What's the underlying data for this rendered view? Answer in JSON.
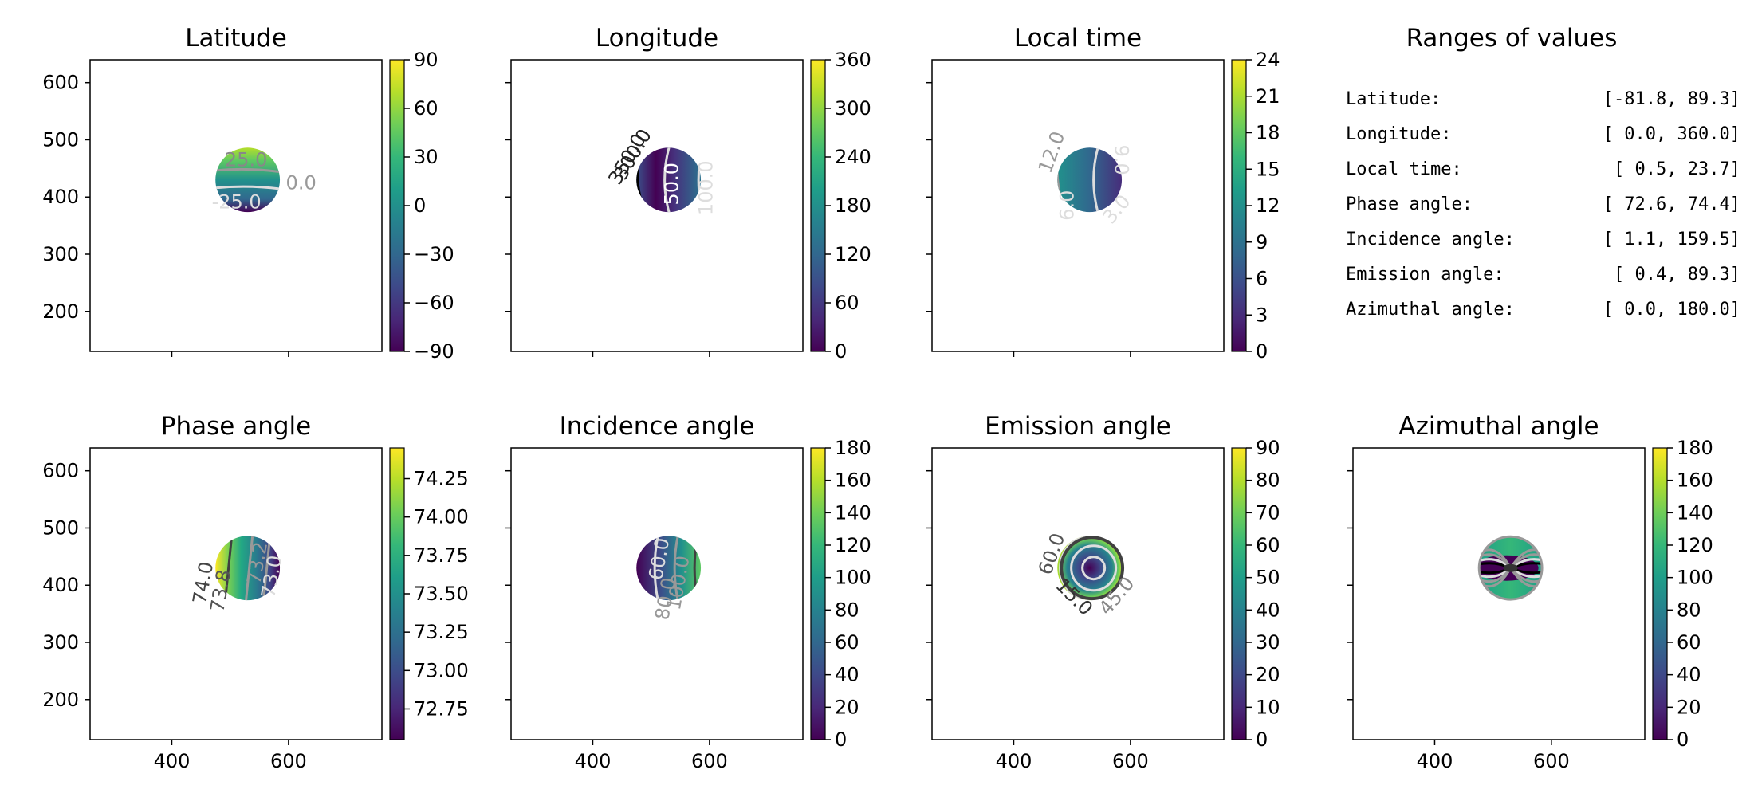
{
  "colors": {
    "cmap": [
      "#440154",
      "#482878",
      "#3e4989",
      "#31688e",
      "#26828e",
      "#1f9e89",
      "#35b779",
      "#6ece58",
      "#b5de2b",
      "#fde725"
    ],
    "contour_black": "#000000",
    "contour_dark": "#404040",
    "contour_gray": "#999999",
    "contour_light": "#dddddd"
  },
  "chart_data": [
    {
      "type": "heatmap",
      "title": "Latitude",
      "colorbar_range": [
        -90,
        90
      ],
      "colorbar_ticks": [
        "90",
        "60",
        "30",
        "0",
        "−30",
        "−60",
        "−90"
      ],
      "xlim": [
        260,
        760
      ],
      "ylim": [
        130,
        640
      ],
      "xticks": [
        "400",
        "600"
      ],
      "yticks": [
        "200",
        "300",
        "400",
        "500",
        "600"
      ],
      "contour_labels": [
        "25.0",
        "-25.0",
        "0.0"
      ],
      "disk_center": [
        530,
        430
      ]
    },
    {
      "type": "heatmap",
      "title": "Longitude",
      "colorbar_range": [
        0,
        360
      ],
      "colorbar_ticks": [
        "360",
        "300",
        "240",
        "180",
        "120",
        "60",
        "0"
      ],
      "xlim": [
        260,
        760
      ],
      "ylim": [
        130,
        640
      ],
      "xticks": [
        "400",
        "600"
      ],
      "contour_labels": [
        "350.0",
        "300.0",
        "50.0",
        "100.0"
      ],
      "disk_center": [
        530,
        430
      ]
    },
    {
      "type": "heatmap",
      "title": "Local time",
      "colorbar_range": [
        0,
        24
      ],
      "colorbar_ticks": [
        "24",
        "21",
        "18",
        "15",
        "12",
        "9",
        "6",
        "3",
        "0"
      ],
      "xlim": [
        260,
        760
      ],
      "ylim": [
        130,
        640
      ],
      "xticks": [
        "400",
        "600"
      ],
      "contour_labels": [
        "12.0",
        "6.0",
        "9.0",
        "3.0"
      ],
      "disk_center": [
        530,
        430
      ]
    },
    {
      "type": "heatmap",
      "title": "Phase angle",
      "colorbar_range": [
        72.55,
        74.45
      ],
      "colorbar_ticks": [
        "74.25",
        "74.00",
        "73.75",
        "73.50",
        "73.25",
        "73.00",
        "72.75"
      ],
      "xlim": [
        260,
        760
      ],
      "ylim": [
        130,
        640
      ],
      "xticks": [
        "400",
        "600"
      ],
      "yticks": [
        "200",
        "300",
        "400",
        "500",
        "600"
      ],
      "contour_labels": [
        "74.0",
        "73.8",
        "73.2",
        "73.0"
      ],
      "disk_center": [
        530,
        430
      ]
    },
    {
      "type": "heatmap",
      "title": "Incidence angle",
      "colorbar_range": [
        0,
        180
      ],
      "colorbar_ticks": [
        "180",
        "160",
        "140",
        "120",
        "100",
        "80",
        "60",
        "40",
        "20",
        "0"
      ],
      "xlim": [
        260,
        760
      ],
      "ylim": [
        130,
        640
      ],
      "xticks": [
        "400",
        "600"
      ],
      "contour_labels": [
        "60.0",
        "80.0",
        "100.0"
      ],
      "disk_center": [
        530,
        430
      ]
    },
    {
      "type": "heatmap",
      "title": "Emission angle",
      "colorbar_range": [
        0,
        90
      ],
      "colorbar_ticks": [
        "90",
        "80",
        "70",
        "60",
        "50",
        "40",
        "30",
        "20",
        "10",
        "0"
      ],
      "xlim": [
        260,
        760
      ],
      "ylim": [
        130,
        640
      ],
      "xticks": [
        "400",
        "600"
      ],
      "contour_labels": [
        "60.0",
        "15.0",
        "45.0"
      ],
      "disk_center": [
        530,
        430
      ]
    },
    {
      "type": "heatmap",
      "title": "Azimuthal angle",
      "colorbar_range": [
        0,
        180
      ],
      "colorbar_ticks": [
        "180",
        "160",
        "140",
        "120",
        "100",
        "80",
        "60",
        "40",
        "20",
        "0"
      ],
      "xlim": [
        260,
        760
      ],
      "ylim": [
        130,
        640
      ],
      "xticks": [
        "400",
        "600"
      ],
      "contour_labels": [],
      "disk_center": [
        530,
        430
      ]
    },
    {
      "type": "table",
      "title": "Ranges of values",
      "rows": [
        {
          "label": "Latitude:",
          "value": "[-81.8,  89.3]"
        },
        {
          "label": "Longitude:",
          "value": "[  0.0, 360.0]"
        },
        {
          "label": "Local time:",
          "value": "[  0.5,  23.7]"
        },
        {
          "label": "Phase angle:",
          "value": "[ 72.6,  74.4]"
        },
        {
          "label": "Incidence angle:",
          "value": "[  1.1, 159.5]"
        },
        {
          "label": "Emission angle:",
          "value": "[  0.4,  89.3]"
        },
        {
          "label": "Azimuthal angle:",
          "value": "[  0.0, 180.0]"
        }
      ]
    }
  ]
}
